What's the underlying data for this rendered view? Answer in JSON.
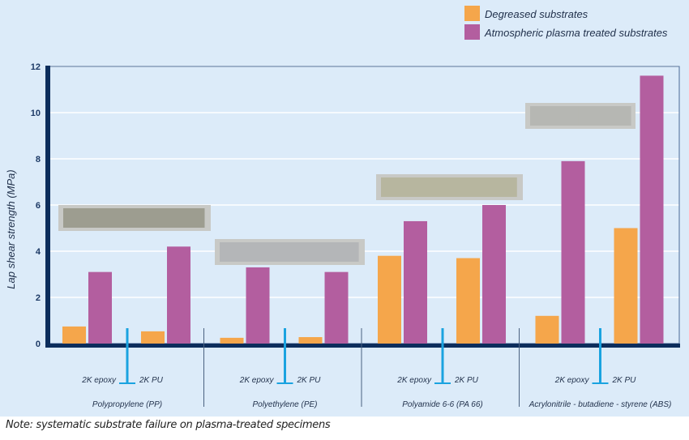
{
  "chart_data": {
    "type": "bar",
    "ylabel": "Lap shear strength (MPa)",
    "ylim": [
      0,
      12
    ],
    "yticks": [
      "0",
      "2",
      "4",
      "6",
      "8",
      "10",
      "12"
    ],
    "grid": true,
    "legend_position": "top-right",
    "groups": [
      {
        "material": "Polypropylene (PP)",
        "adhesives": [
          "2K epoxy",
          "2K PU"
        ]
      },
      {
        "material": "Polyethylene (PE)",
        "adhesives": [
          "2K epoxy",
          "2K PU"
        ]
      },
      {
        "material": "Polyamide 6-6 (PA 66)",
        "adhesives": [
          "2K epoxy",
          "2K PU"
        ]
      },
      {
        "material": "Acrylonitrile - butadiene - styrene (ABS)",
        "adhesives": [
          "2K epoxy",
          "2K PU"
        ]
      }
    ],
    "series": [
      {
        "name": "Degreased substrates",
        "color": "#f5a64b",
        "values": [
          0.74,
          0.53,
          0.25,
          0.28,
          3.8,
          3.7,
          1.2,
          5.0
        ]
      },
      {
        "name": "Atmospheric plasma treated substrates",
        "color": "#b35e9f",
        "values": [
          3.1,
          4.2,
          3.3,
          3.1,
          5.3,
          6.0,
          7.9,
          11.6
        ]
      }
    ]
  },
  "note": "Note: systematic substrate failure on plasma-treated specimens"
}
